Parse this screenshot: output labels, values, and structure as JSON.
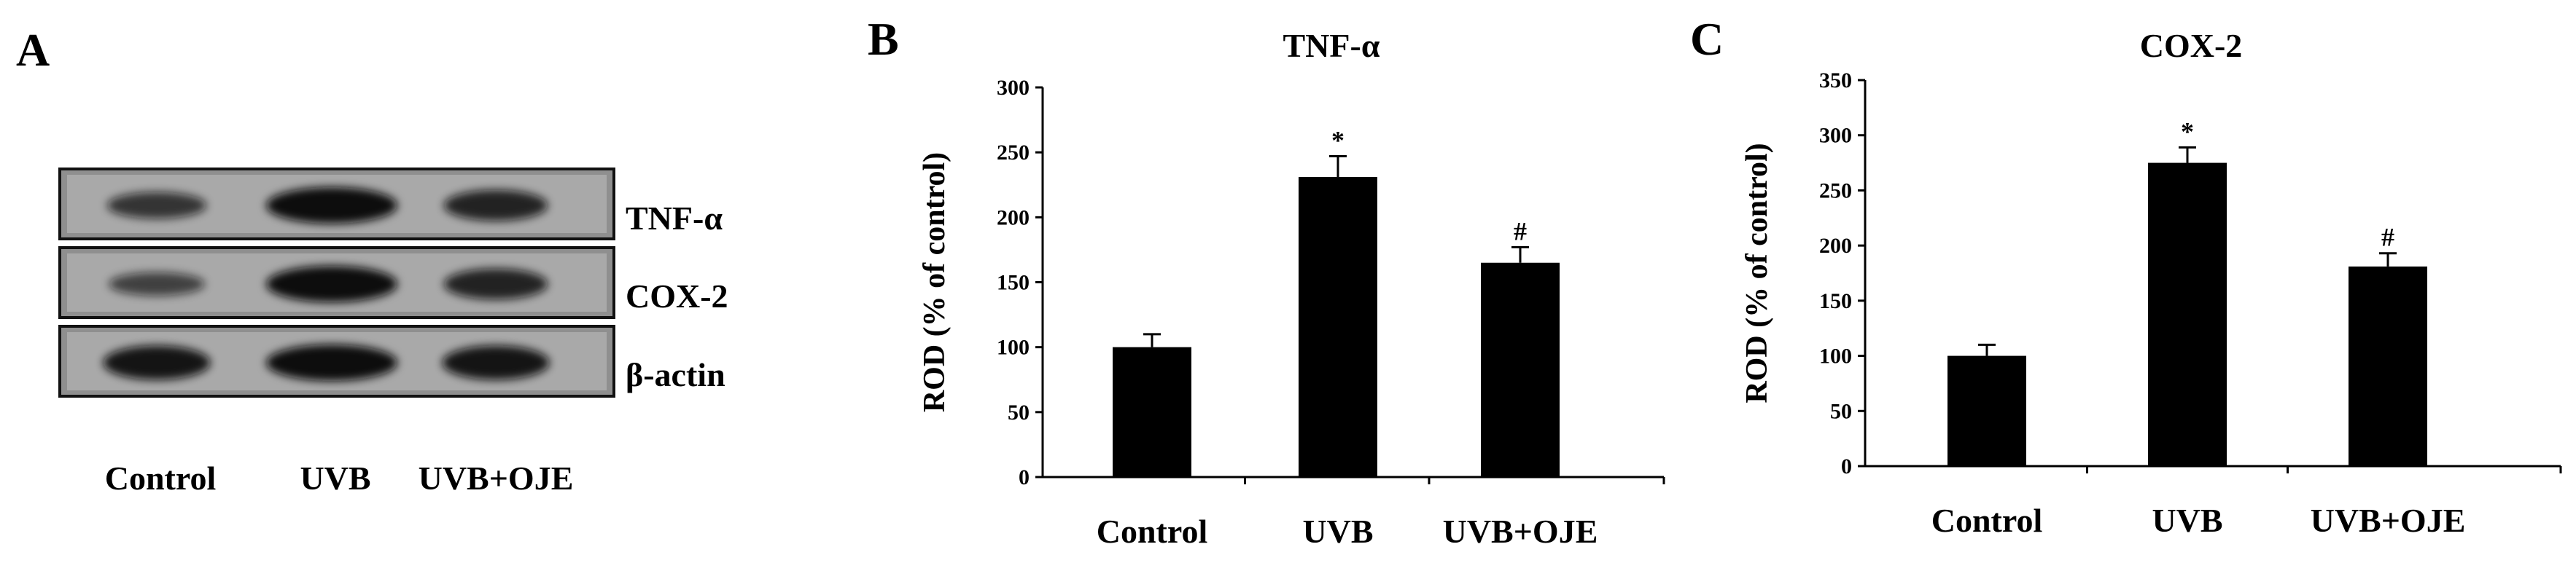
{
  "panel_a": {
    "letter": "A",
    "blot_rows": [
      "TNF-α",
      "COX-2",
      "β-actin"
    ],
    "lanes": [
      "Control",
      "UVB",
      "UVB+OJE"
    ],
    "band_intensity": [
      [
        0.55,
        1.0,
        0.75
      ],
      [
        0.4,
        1.0,
        0.75
      ],
      [
        0.9,
        1.0,
        0.9
      ]
    ]
  },
  "chart_data": [
    {
      "type": "bar",
      "panel": "B",
      "title": "TNF-α",
      "xlabel": "",
      "ylabel": "ROD (% of control)",
      "categories": [
        "Control",
        "UVB",
        "UVB+OJE"
      ],
      "values": [
        100,
        231,
        165
      ],
      "errors": [
        10,
        16,
        12
      ],
      "significance": [
        "",
        "*",
        "#"
      ],
      "ylim": [
        0,
        300
      ],
      "yticks": [
        0,
        50,
        100,
        150,
        200,
        250,
        300
      ],
      "grid": false,
      "bar_color": "#000000"
    },
    {
      "type": "bar",
      "panel": "C",
      "title": "COX-2",
      "xlabel": "",
      "ylabel": "ROD (% of control)",
      "categories": [
        "Control",
        "UVB",
        "UVB+OJE"
      ],
      "values": [
        100,
        275,
        181
      ],
      "errors": [
        10,
        14,
        12
      ],
      "significance": [
        "",
        "*",
        "#"
      ],
      "ylim": [
        0,
        350
      ],
      "yticks": [
        0,
        50,
        100,
        150,
        200,
        250,
        300,
        350
      ],
      "grid": false,
      "bar_color": "#000000"
    }
  ]
}
